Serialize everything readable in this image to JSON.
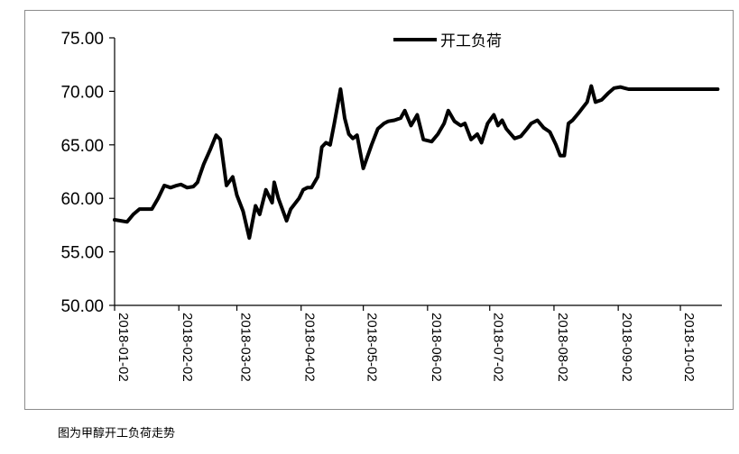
{
  "caption": "图为甲醇开工负荷走势",
  "chart_data": {
    "type": "line",
    "title": "",
    "xlabel": "",
    "ylabel": "",
    "ylim": [
      50,
      75
    ],
    "ytick_values": [
      50,
      55,
      60,
      65,
      70,
      75
    ],
    "ytick_labels": [
      "50.00",
      "55.00",
      "60.00",
      "65.00",
      "70.00",
      "75.00"
    ],
    "xtick_labels": [
      "2018-01-02",
      "2018-02-02",
      "2018-03-02",
      "2018-04-02",
      "2018-05-02",
      "2018-06-02",
      "2018-07-02",
      "2018-08-02",
      "2018-09-02",
      "2018-10-02"
    ],
    "legend": {
      "position": "top-center"
    },
    "line_color": "#000000",
    "series": [
      {
        "name": "开工负荷",
        "x": [
          "2018-01-02",
          "2018-01-05",
          "2018-01-08",
          "2018-01-11",
          "2018-01-14",
          "2018-01-17",
          "2018-01-20",
          "2018-01-23",
          "2018-01-26",
          "2018-01-29",
          "2018-02-01",
          "2018-02-03",
          "2018-02-06",
          "2018-02-09",
          "2018-02-11",
          "2018-02-12",
          "2018-02-14",
          "2018-02-17",
          "2018-02-20",
          "2018-02-22",
          "2018-02-25",
          "2018-02-28",
          "2018-03-02",
          "2018-03-05",
          "2018-03-08",
          "2018-03-11",
          "2018-03-13",
          "2018-03-16",
          "2018-03-19",
          "2018-03-20",
          "2018-03-22",
          "2018-03-26",
          "2018-03-28",
          "2018-04-01",
          "2018-04-03",
          "2018-04-05",
          "2018-04-07",
          "2018-04-10",
          "2018-04-12",
          "2018-04-14",
          "2018-04-16",
          "2018-04-18",
          "2018-04-21",
          "2018-04-23",
          "2018-04-25",
          "2018-04-27",
          "2018-04-29",
          "2018-05-02",
          "2018-05-06",
          "2018-05-09",
          "2018-05-12",
          "2018-05-14",
          "2018-05-17",
          "2018-05-20",
          "2018-05-22",
          "2018-05-25",
          "2018-05-28",
          "2018-05-31",
          "2018-06-04",
          "2018-06-07",
          "2018-06-10",
          "2018-06-12",
          "2018-06-15",
          "2018-06-18",
          "2018-06-20",
          "2018-06-23",
          "2018-06-26",
          "2018-06-28",
          "2018-07-01",
          "2018-07-04",
          "2018-07-06",
          "2018-07-08",
          "2018-07-10",
          "2018-07-14",
          "2018-07-17",
          "2018-07-20",
          "2018-07-22",
          "2018-07-25",
          "2018-07-28",
          "2018-07-31",
          "2018-08-03",
          "2018-08-05",
          "2018-08-07",
          "2018-08-09",
          "2018-08-11",
          "2018-08-14",
          "2018-08-16",
          "2018-08-18",
          "2018-08-20",
          "2018-08-22",
          "2018-08-25",
          "2018-08-28",
          "2018-08-31",
          "2018-09-03",
          "2018-09-05",
          "2018-09-07",
          "2018-09-10",
          "2018-09-12",
          "2018-09-14",
          "2018-09-16",
          "2018-09-18",
          "2018-09-20",
          "2018-09-23",
          "2018-09-25",
          "2018-09-27",
          "2018-09-29",
          "2018-10-01",
          "2018-10-03",
          "2018-10-06",
          "2018-10-09",
          "2018-10-12",
          "2018-10-14",
          "2018-10-16",
          "2018-10-18",
          "2018-10-20"
        ],
        "values": [
          58.0,
          57.9,
          57.8,
          58.5,
          59.0,
          59.0,
          59.0,
          60.0,
          61.2,
          61.0,
          61.2,
          61.3,
          61.0,
          61.1,
          61.5,
          62.1,
          63.2,
          64.5,
          65.9,
          65.5,
          61.2,
          62.0,
          60.3,
          58.8,
          56.3,
          59.3,
          58.5,
          60.8,
          59.6,
          61.5,
          60.0,
          57.9,
          59.0,
          60.0,
          60.8,
          61.0,
          61.0,
          62.0,
          64.8,
          65.2,
          65.0,
          67.0,
          70.2,
          67.5,
          66.0,
          65.6,
          65.9,
          62.8,
          65.0,
          66.5,
          67.0,
          67.2,
          67.3,
          67.5,
          68.2,
          66.8,
          67.8,
          65.5,
          65.3,
          66.0,
          67.0,
          68.2,
          67.2,
          66.8,
          67.0,
          65.5,
          66.0,
          65.2,
          67.0,
          67.8,
          66.8,
          67.3,
          66.5,
          65.6,
          65.8,
          66.5,
          67.0,
          67.3,
          66.6,
          66.2,
          65.0,
          64.0,
          64.0,
          67.0,
          67.3,
          68.0,
          68.5,
          69.0,
          70.5,
          69.0,
          69.2,
          69.8,
          70.3,
          70.4,
          70.3,
          70.2,
          70.2,
          70.2,
          70.2,
          70.2,
          70.2,
          70.2,
          70.2,
          70.2,
          70.2,
          70.2,
          70.2,
          70.2,
          70.2,
          70.2,
          70.2,
          70.2,
          70.2,
          70.2,
          70.2
        ]
      }
    ]
  }
}
